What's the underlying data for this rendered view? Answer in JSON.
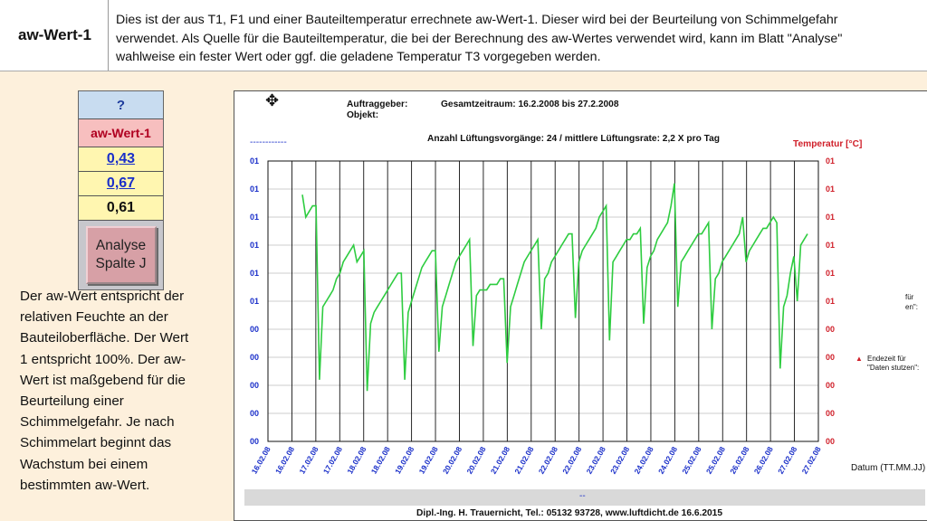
{
  "header": {
    "title": "aw-Wert-1",
    "lines": [
      "Dies ist der aus T1, F1 und einer Bauteiltemperatur errechnete aw-Wert-1. Dieser wird bei der Beurteilung von Schimmelgefahr",
      "verwendet. Als Quelle für die Bauteiltemperatur, die bei der Berechnung des aw-Wertes verwendet wird, kann im Blatt \"Analyse\"",
      "wahlweise ein fester Wert oder ggf. die geladene Temperatur T3 vorgegeben werden."
    ]
  },
  "sidebar": {
    "question": "?",
    "label": "aw-Wert-1",
    "values": [
      "0,43",
      "0,67",
      "0,61"
    ],
    "button_line1": "Analyse",
    "button_line2": "Spalte J"
  },
  "description_lines": [
    "Der aw-Wert entspricht der",
    "relativen Feuchte an der",
    "Bauteiloberfläche. Der Wert",
    "1 entspricht 100%. Der aw-",
    "Wert ist maßgebend für die",
    "Beurteilung einer",
    "Schimmelgefahr. Je nach",
    "Schimmelart beginnt das",
    "Wachstum bei einem",
    "bestimmten aw-Wert."
  ],
  "chart_info": {
    "auftraggeber": "Auftraggeber:",
    "objekt": "Objekt:",
    "zeitraum": "Gesamtzeitraum: 16.2.2008  bis 27.2.2008",
    "lueftung": "Anzahl Lüftungsvorgänge:  24 / mittlere Lüftungsrate:  2,2 X pro Tag",
    "temp_title": "Temperatur [°C]",
    "left_dash": "------------",
    "side_note_1a": "für",
    "side_note_1b": "en\":",
    "side_note_2a": "Endezeit für",
    "side_note_2b": "\"Daten stutzen\":",
    "footer_dash": "--",
    "footer": "Dipl.-Ing.  H. Trauernicht, Tel.: 05132 93728, www.luftdicht.de 16.6.2015"
  },
  "chart_data": {
    "type": "line",
    "xlabel": "Datum (TT.MM.JJ)",
    "x_ticks": [
      "16.02.08",
      "16.02.08",
      "17.02.08",
      "17.02.08",
      "18.02.08",
      "18.02.08",
      "19.02.08",
      "19.02.08",
      "20.02.08",
      "20.02.08",
      "21.02.08",
      "21.02.08",
      "22.02.08",
      "22.02.08",
      "23.02.08",
      "23.02.08",
      "24.02.08",
      "24.02.08",
      "25.02.08",
      "25.02.08",
      "26.02.08",
      "26.02.08",
      "27.02.08",
      "27.02.08"
    ],
    "y_left_ticks": [
      "01",
      "01",
      "01",
      "01",
      "01",
      "01",
      "00",
      "00",
      "00",
      "00",
      "00"
    ],
    "y_right_ticks": [
      "01",
      "01",
      "01",
      "01",
      "01",
      "01",
      "00",
      "00",
      "00",
      "00",
      "00"
    ],
    "grid": true,
    "series": [
      {
        "color": "#2ecc40",
        "values": [
          0.84,
          0.8,
          0.81,
          0.82,
          0.82,
          0.51,
          0.64,
          0.65,
          0.66,
          0.67,
          0.69,
          0.7,
          0.72,
          0.73,
          0.74,
          0.75,
          0.72,
          0.73,
          0.74,
          0.49,
          0.61,
          0.63,
          0.64,
          0.65,
          0.66,
          0.67,
          0.68,
          0.69,
          0.7,
          0.7,
          0.51,
          0.63,
          0.65,
          0.67,
          0.69,
          0.71,
          0.72,
          0.73,
          0.74,
          0.74,
          0.56,
          0.64,
          0.66,
          0.68,
          0.7,
          0.72,
          0.73,
          0.74,
          0.75,
          0.76,
          0.57,
          0.66,
          0.67,
          0.67,
          0.67,
          0.68,
          0.68,
          0.68,
          0.69,
          0.69,
          0.54,
          0.64,
          0.66,
          0.68,
          0.7,
          0.72,
          0.73,
          0.74,
          0.75,
          0.76,
          0.6,
          0.69,
          0.7,
          0.72,
          0.73,
          0.74,
          0.75,
          0.76,
          0.77,
          0.77,
          0.62,
          0.72,
          0.74,
          0.75,
          0.76,
          0.77,
          0.78,
          0.8,
          0.81,
          0.82,
          0.58,
          0.72,
          0.73,
          0.74,
          0.75,
          0.76,
          0.76,
          0.77,
          0.77,
          0.78,
          0.61,
          0.71,
          0.73,
          0.74,
          0.76,
          0.77,
          0.78,
          0.79,
          0.82,
          0.86,
          0.64,
          0.72,
          0.73,
          0.74,
          0.75,
          0.76,
          0.77,
          0.77,
          0.78,
          0.79,
          0.6,
          0.69,
          0.7,
          0.72,
          0.73,
          0.74,
          0.75,
          0.76,
          0.77,
          0.8,
          0.72,
          0.74,
          0.75,
          0.76,
          0.77,
          0.78,
          0.78,
          0.79,
          0.8,
          0.79,
          0.53,
          0.64,
          0.66,
          0.7,
          0.73,
          0.65,
          0.75,
          0.76,
          0.77
        ]
      }
    ]
  }
}
